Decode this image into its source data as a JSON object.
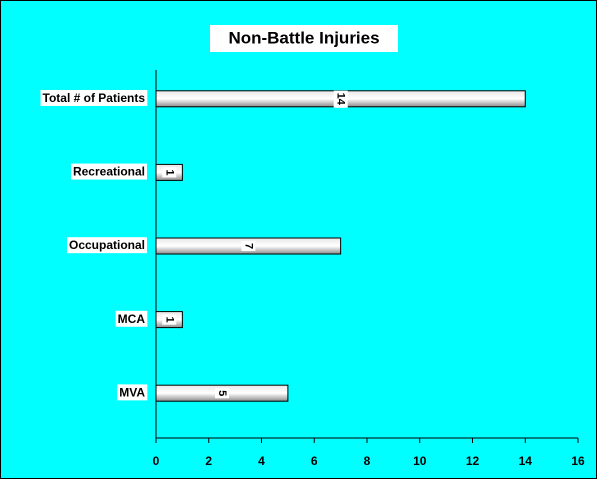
{
  "chart_data": {
    "type": "bar",
    "title": "Non-Battle Injuries",
    "categories": [
      "Total # of Patients",
      "Recreational",
      "Occupational",
      "MCA",
      "MVA"
    ],
    "values": [
      14,
      1,
      7,
      1,
      5
    ],
    "xlim": [
      0,
      16
    ],
    "xticks": [
      0,
      2,
      4,
      6,
      8,
      10,
      12,
      14,
      16
    ]
  }
}
